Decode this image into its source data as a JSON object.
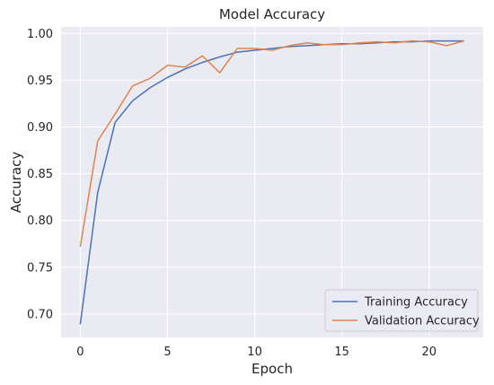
{
  "chart_data": {
    "type": "line",
    "title": "Model Accuracy",
    "xlabel": "Epoch",
    "ylabel": "Accuracy",
    "xlim": [
      -1.1,
      23.1
    ],
    "ylim": [
      0.675,
      1.007
    ],
    "xticks": [
      0,
      5,
      10,
      15,
      20
    ],
    "yticks": [
      0.7,
      0.75,
      0.8,
      0.85,
      0.9,
      0.95,
      1.0
    ],
    "xtick_labels": [
      "0",
      "5",
      "10",
      "15",
      "20"
    ],
    "ytick_labels": [
      "0.70",
      "0.75",
      "0.80",
      "0.85",
      "0.90",
      "0.95",
      "1.00"
    ],
    "grid": true,
    "background": "#eaeaf2",
    "legend_position": "lower right",
    "x": [
      0,
      1,
      2,
      3,
      4,
      5,
      6,
      7,
      8,
      9,
      10,
      11,
      12,
      13,
      14,
      15,
      16,
      17,
      18,
      19,
      20,
      21,
      22
    ],
    "series": [
      {
        "name": "Training Accuracy",
        "color": "#4c72b0",
        "values": [
          0.689,
          0.83,
          0.905,
          0.928,
          0.942,
          0.953,
          0.962,
          0.969,
          0.975,
          0.98,
          0.982,
          0.984,
          0.986,
          0.987,
          0.988,
          0.989,
          0.989,
          0.99,
          0.991,
          0.991,
          0.992,
          0.992,
          0.992
        ]
      },
      {
        "name": "Validation Accuracy",
        "color": "#dd8452",
        "values": [
          0.772,
          0.885,
          0.914,
          0.944,
          0.952,
          0.966,
          0.964,
          0.976,
          0.958,
          0.984,
          0.984,
          0.982,
          0.987,
          0.99,
          0.988,
          0.988,
          0.99,
          0.991,
          0.99,
          0.992,
          0.991,
          0.987,
          0.992
        ]
      }
    ]
  }
}
